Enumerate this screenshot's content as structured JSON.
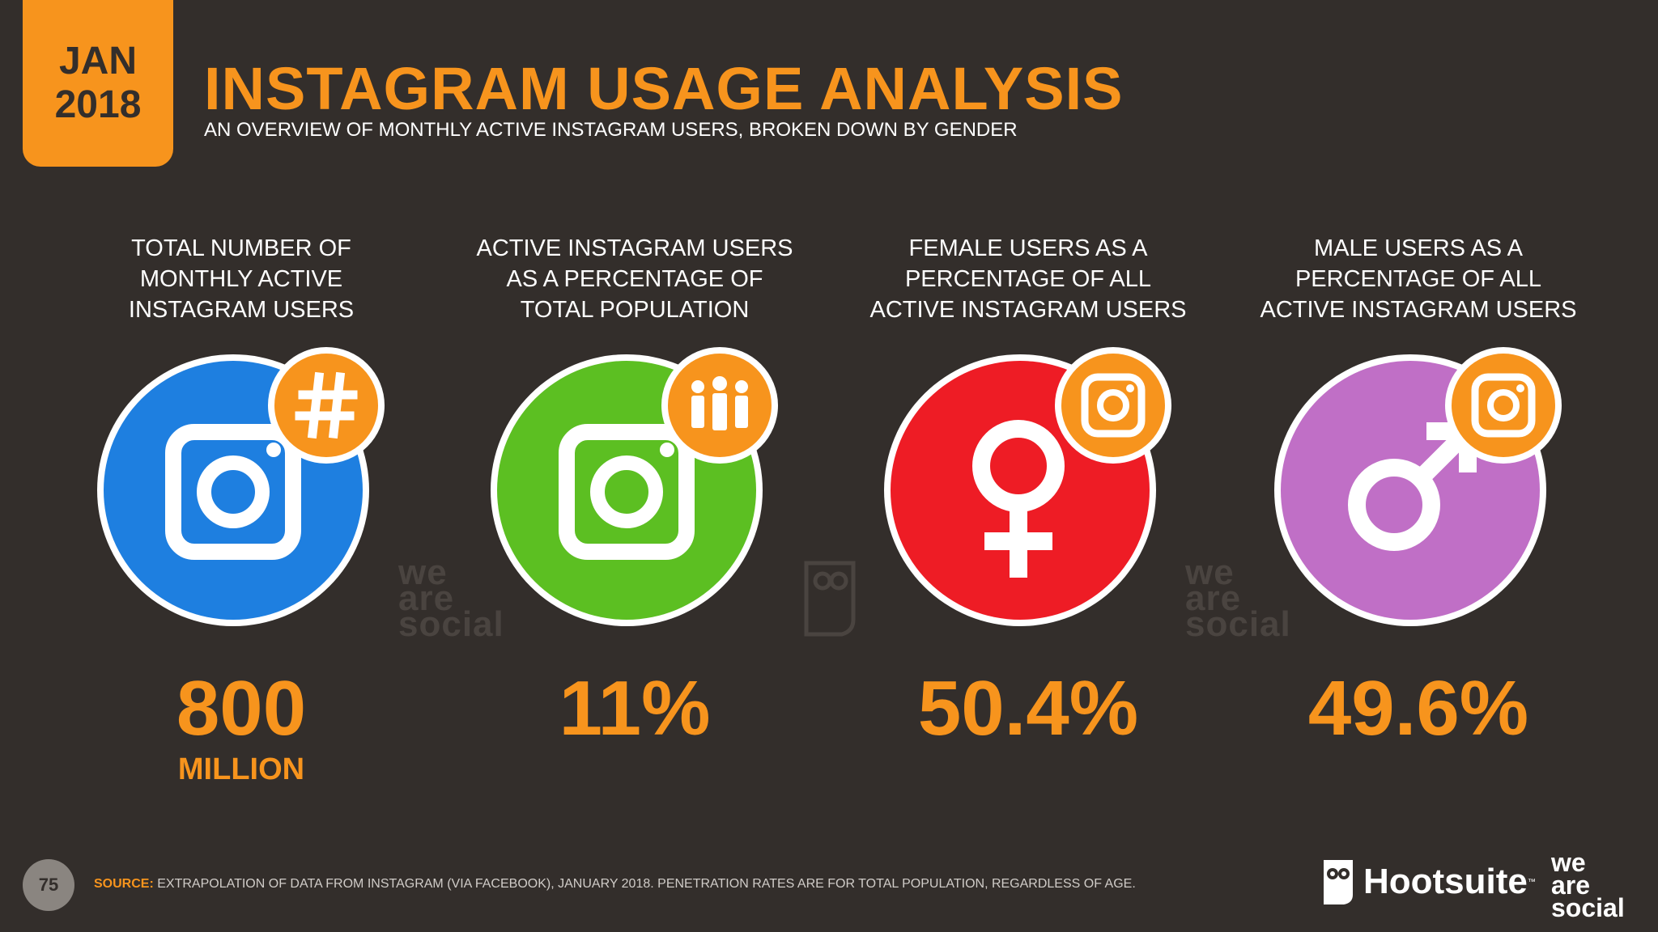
{
  "header": {
    "date_month": "JAN",
    "date_year": "2018",
    "title": "INSTAGRAM USAGE ANALYSIS",
    "subtitle": "AN OVERVIEW OF MONTHLY ACTIVE INSTAGRAM USERS, BROKEN DOWN BY GENDER"
  },
  "stats": [
    {
      "label": "TOTAL NUMBER OF MONTHLY ACTIVE INSTAGRAM USERS",
      "value": "800",
      "unit": "MILLION",
      "circle_color": "#1e7fe0",
      "icon": "instagram-icon",
      "badge_icon": "hashtag-icon"
    },
    {
      "label": "ACTIVE INSTAGRAM USERS AS A PERCENTAGE OF TOTAL POPULATION",
      "value": "11%",
      "unit": "",
      "circle_color": "#5cbf22",
      "icon": "instagram-icon",
      "badge_icon": "people-icon"
    },
    {
      "label": "FEMALE USERS AS A PERCENTAGE OF ALL ACTIVE INSTAGRAM USERS",
      "value": "50.4%",
      "unit": "",
      "circle_color": "#ee1c25",
      "icon": "female-icon",
      "badge_icon": "instagram-icon"
    },
    {
      "label": "MALE USERS AS A PERCENTAGE OF ALL ACTIVE INSTAGRAM USERS",
      "value": "49.6%",
      "unit": "",
      "circle_color": "#c06fc6",
      "icon": "male-icon",
      "badge_icon": "instagram-icon"
    }
  ],
  "watermark": {
    "line1": "we",
    "line2": "are",
    "line3": "social"
  },
  "footer": {
    "page_number": "75",
    "source_label": "SOURCE:",
    "source_text": "EXTRAPOLATION OF DATA FROM INSTAGRAM (VIA FACEBOOK), JANUARY 2018. PENETRATION RATES ARE FOR TOTAL POPULATION, REGARDLESS OF AGE.",
    "hootsuite": "Hootsuite",
    "hootsuite_tm": "™",
    "was_line1": "we",
    "was_line2": "are",
    "was_line3": "social"
  },
  "colors": {
    "accent": "#f7941d",
    "background": "#332e2b"
  }
}
